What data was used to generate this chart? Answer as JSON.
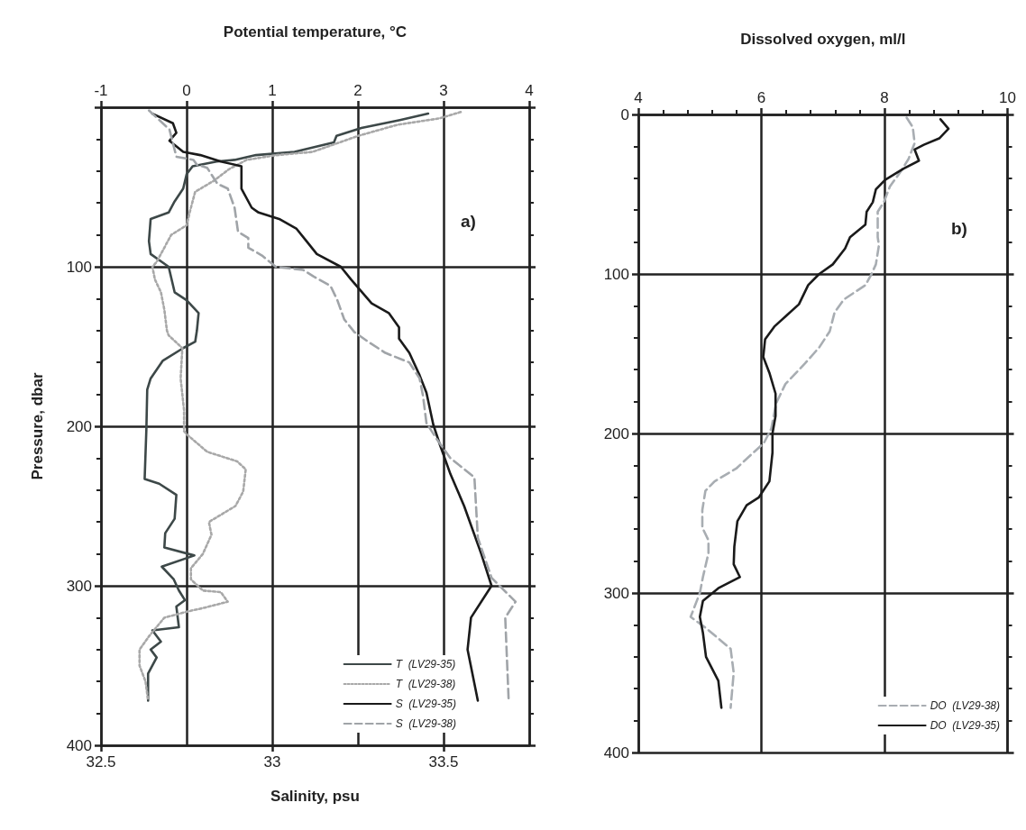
{
  "chart_data": [
    {
      "type": "line",
      "x2label": "Potential temperature, °C",
      "xlabel": "Salinity, psu",
      "ylabel": "Pressure, dbar",
      "xlim": [
        32.5,
        33.75
      ],
      "xticks": [
        32.5,
        33,
        33.5
      ],
      "x2lim": [
        -1,
        4
      ],
      "x2ticks": [
        -1,
        0,
        1,
        2,
        3,
        4
      ],
      "ylim": [
        400,
        0
      ],
      "yticks": [
        {
          "value": 0,
          "label": null
        },
        100,
        200,
        300,
        400
      ],
      "grid": true,
      "legend": "bottom right",
      "marker": "none",
      "annotations": [
        "a)"
      ],
      "series": [
        {
          "name": "T  (LV29-35)",
          "color": "#3d4848",
          "axis": "x2",
          "line_style": "solid",
          "x": [
            2.82,
            2.49,
            2.04,
            1.75,
            1.72,
            1.26,
            0.81,
            0.56,
            0.35,
            0.07,
            0,
            -0.04,
            -0.14,
            -0.21,
            -0.42,
            -0.44,
            -0.42,
            -0.21,
            -0.14,
            0,
            0.14,
            0.12,
            0.1,
            -0.04,
            -0.28,
            -0.42,
            -0.46,
            -0.47,
            -0.49,
            -0.32,
            -0.12,
            -0.14,
            -0.25,
            -0.26,
            0.09,
            -0.29,
            -0.15,
            -0.09,
            -0.02,
            -0.12,
            -0.09,
            -0.4,
            -0.3,
            -0.42,
            -0.35,
            -0.45,
            -0.45,
            -0.45
          ],
          "values": [
            4,
            8,
            13,
            18,
            22,
            28,
            30,
            33,
            34,
            37,
            42,
            51,
            59,
            66,
            70,
            84,
            92,
            100,
            116,
            121,
            129,
            140,
            147,
            151,
            159,
            170,
            177,
            202,
            233,
            236,
            243,
            258,
            267,
            276,
            281,
            288,
            296,
            303,
            309,
            313,
            326,
            328,
            335,
            340,
            345,
            355,
            365,
            372
          ]
        },
        {
          "name": "T  (LV29-38)",
          "color": "#a8a8a8",
          "axis": "x2",
          "line_style": "dotted",
          "x": [
            3.2,
            2.95,
            2.46,
            2.0,
            1.47,
            1.05,
            0.7,
            0.49,
            0.32,
            0.1,
            0.04,
            0,
            -0.18,
            -0.35,
            -0.4,
            -0.37,
            -0.3,
            -0.26,
            -0.23,
            -0.21,
            -0.05,
            -0.07,
            -0.03,
            -0.03,
            0,
            0.24,
            0.59,
            0.69,
            0.66,
            0.57,
            0.26,
            0.29,
            0.19,
            0.05,
            0.05,
            0.19,
            0.4,
            0.48,
            0.19,
            0.02,
            -0.26,
            -0.43,
            -0.55,
            -0.55,
            -0.48,
            -0.45
          ],
          "values": [
            3,
            7,
            11,
            18,
            28,
            30,
            33,
            39,
            46,
            53,
            65,
            74,
            80,
            97,
            100,
            108,
            116,
            127,
            140,
            143,
            151,
            170,
            190,
            203,
            205,
            216,
            222,
            227,
            241,
            250,
            260,
            268,
            280,
            289,
            296,
            303,
            304,
            310,
            314,
            316,
            320,
            331,
            340,
            350,
            360,
            372
          ]
        },
        {
          "name": "S  (LV29-35)",
          "color": "#1a1a1a",
          "line_style": "solid",
          "x": [
            32.65,
            32.71,
            32.72,
            32.7,
            32.74,
            32.79,
            32.85,
            32.91,
            32.91,
            32.94,
            32.96,
            33.02,
            33.07,
            33.1,
            33.13,
            33.2,
            33.23,
            33.29,
            33.34,
            33.37,
            33.37,
            33.4,
            33.43,
            33.45,
            33.47,
            33.49,
            33.52,
            33.56,
            33.61,
            33.64,
            33.58,
            33.57,
            33.6
          ],
          "values": [
            4,
            10,
            16,
            21,
            28,
            30,
            34,
            37,
            51,
            63,
            66,
            70,
            76,
            84,
            92,
            100,
            108,
            123,
            129,
            138,
            145,
            154,
            168,
            179,
            199,
            212,
            230,
            250,
            280,
            300,
            320,
            340,
            372
          ]
        },
        {
          "name": "S  (LV29-38)",
          "color": "#a0a4a8",
          "line_style": "dashed",
          "x": [
            32.64,
            32.7,
            32.72,
            32.77,
            32.78,
            32.81,
            32.84,
            32.87,
            32.89,
            32.9,
            32.93,
            32.93,
            32.97,
            33.01,
            33.09,
            33.12,
            33.17,
            33.19,
            33.21,
            33.24,
            33.28,
            33.33,
            33.4,
            33.43,
            33.44,
            33.45,
            33.48,
            33.52,
            33.59,
            33.6,
            33.64,
            33.71,
            33.68,
            33.69
          ],
          "values": [
            2,
            14,
            31,
            33,
            36,
            38,
            48,
            51,
            63,
            78,
            82,
            88,
            93,
            100,
            102,
            106,
            112,
            121,
            133,
            141,
            147,
            154,
            160,
            170,
            181,
            198,
            208,
            220,
            232,
            270,
            295,
            310,
            320,
            372
          ]
        }
      ]
    },
    {
      "type": "line",
      "xlabel": "Dissolved oxygen, ml/l",
      "xlim": [
        4,
        10
      ],
      "xticks": [
        4,
        6,
        8,
        10
      ],
      "ylim": [
        400,
        0
      ],
      "yticks": [
        0,
        100,
        200,
        300,
        400
      ],
      "grid": true,
      "legend": "bottom right",
      "marker": "none",
      "annotations": [
        "b)"
      ],
      "series": [
        {
          "name": "DO  (LV29-38)",
          "color": "#a8adb2",
          "line_style": "dashed",
          "x": [
            8.36,
            8.46,
            8.49,
            8.39,
            8.26,
            8.09,
            7.99,
            7.89,
            7.89,
            7.91,
            7.86,
            7.79,
            7.69,
            7.34,
            7.19,
            7.11,
            6.94,
            6.71,
            6.39,
            6.24,
            6.16,
            6.04,
            5.84,
            5.59,
            5.24,
            5.09,
            5.04,
            5.04,
            5.14,
            5.14,
            5.05,
            5.0,
            4.85,
            5.1,
            5.5,
            5.55,
            5.5
          ],
          "values": [
            2,
            8,
            18,
            28,
            36,
            45,
            55,
            61,
            77,
            82,
            94,
            100,
            107,
            116,
            124,
            136,
            146,
            156,
            169,
            181,
            197,
            206,
            213,
            222,
            230,
            236,
            248,
            259,
            267,
            275,
            290,
            300,
            315,
            322,
            335,
            350,
            372
          ]
        },
        {
          "name": "DO  (LV29-35)",
          "color": "#1a1a1a",
          "line_style": "solid",
          "x": [
            8.91,
            9.04,
            8.89,
            8.64,
            8.49,
            8.56,
            8.31,
            8.01,
            7.86,
            7.81,
            7.71,
            7.69,
            7.44,
            7.36,
            7.16,
            6.94,
            6.76,
            6.61,
            6.41,
            6.21,
            6.06,
            6.03,
            6.13,
            6.23,
            6.23,
            6.18,
            6.18,
            6.13,
            5.96,
            5.76,
            5.61,
            5.56,
            5.55,
            5.65,
            5.3,
            5.05,
            5.0,
            5.05,
            5.1,
            5.3,
            5.35
          ],
          "values": [
            3,
            9,
            15,
            19,
            22,
            29,
            34,
            41,
            47,
            55,
            61,
            69,
            77,
            84,
            94,
            100,
            107,
            119,
            126,
            133,
            141,
            152,
            162,
            175,
            189,
            200,
            212,
            230,
            240,
            245,
            255,
            271,
            282,
            290,
            297,
            305,
            315,
            325,
            340,
            355,
            372
          ]
        }
      ]
    }
  ]
}
